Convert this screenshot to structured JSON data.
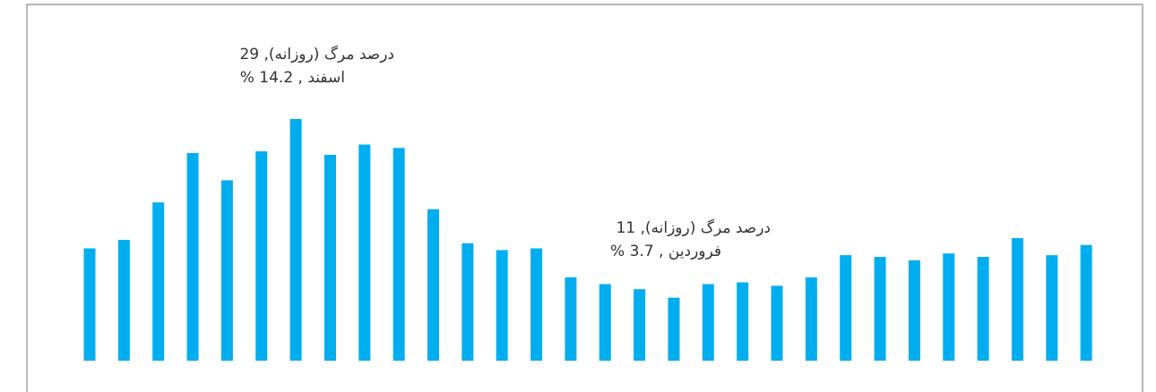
{
  "chart_data": {
    "type": "bar",
    "color": "#00aeef",
    "values": [
      6.6,
      7.1,
      9.3,
      12.2,
      10.6,
      12.3,
      14.2,
      12.1,
      12.7,
      12.5,
      8.9,
      6.9,
      6.5,
      6.6,
      4.9,
      4.5,
      4.2,
      3.7,
      4.5,
      4.6,
      4.4,
      4.9,
      6.2,
      6.1,
      5.9,
      6.3,
      6.1,
      7.2,
      6.2,
      6.8
    ],
    "annotations": [
      {
        "lines": [
          "درصد مرگ (روزانه), 29",
          "اسفند , 14.2 %"
        ]
      },
      {
        "lines": [
          "درصد مرگ (روزانه), 11",
          "فروردین , 3.7 %"
        ]
      }
    ]
  }
}
